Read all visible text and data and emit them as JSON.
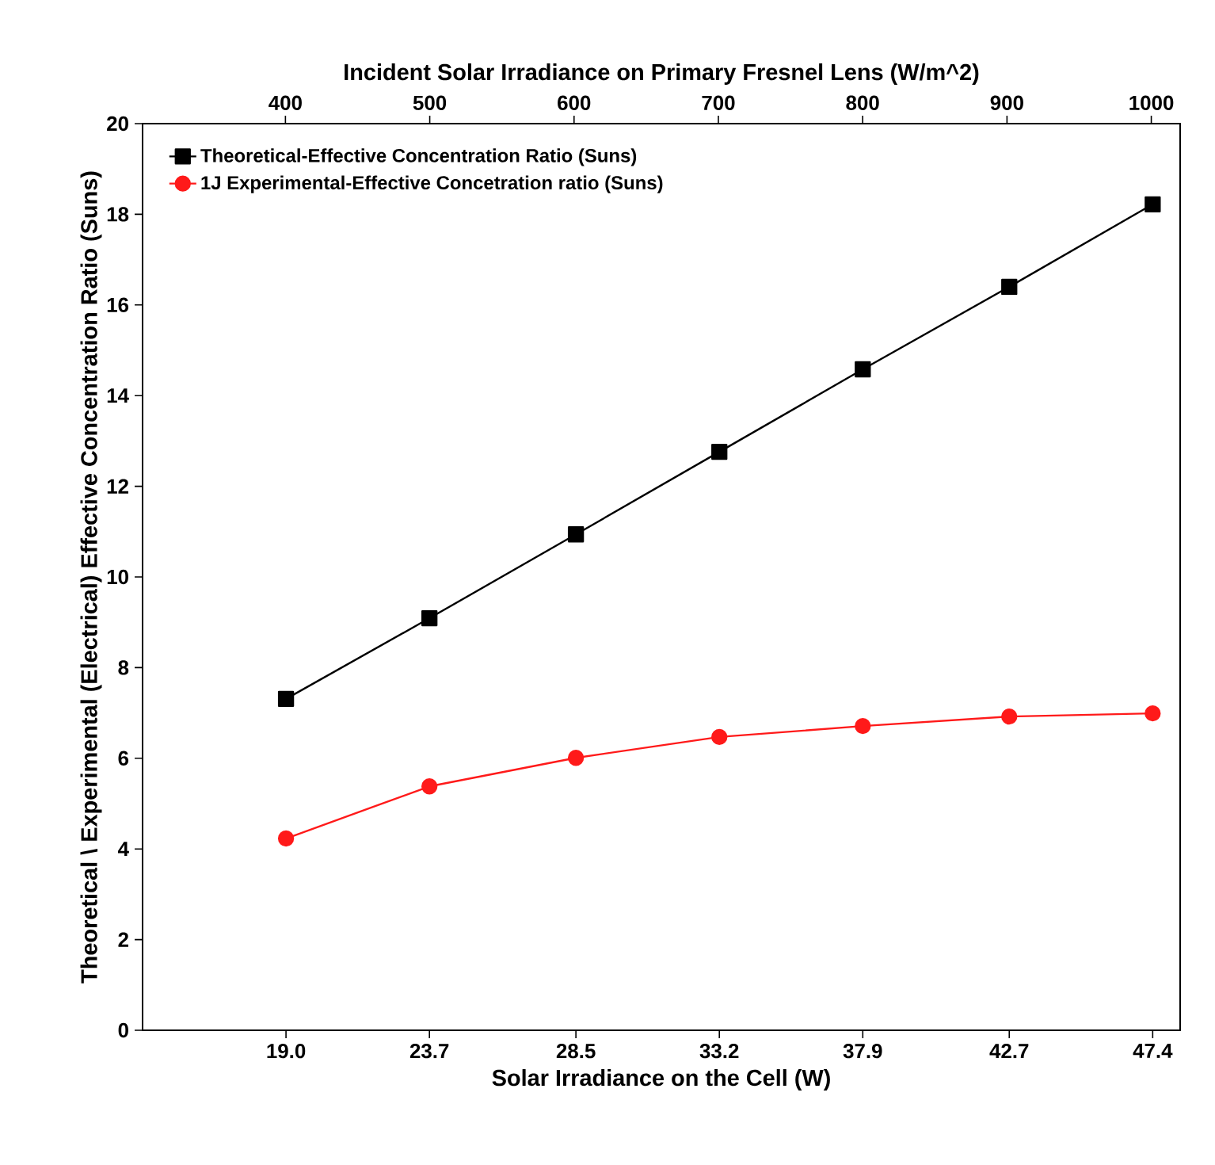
{
  "chart_data": {
    "type": "line",
    "xlabel": "Solar Irradiance on the Cell (W)",
    "x2label": "Incident Solar Irradiance on Primary Fresnel Lens (W/m^2)",
    "ylabel": "Theoretical \\ Experimental (Electrical) Effective Concentration Ratio (Suns)",
    "x": [
      19.0,
      23.7,
      28.5,
      33.2,
      37.9,
      42.7,
      47.4
    ],
    "xlim": [
      14.3,
      48.3
    ],
    "xticks": [
      {
        "value": 19,
        "label": "19.0"
      },
      23.7,
      28.5,
      33.2,
      37.9,
      42.7,
      47.4
    ],
    "x2lim": [
      301,
      1020
    ],
    "x2ticks": [
      400,
      500,
      600,
      700,
      800,
      900,
      1000
    ],
    "ylim": [
      0,
      20
    ],
    "yticks": [
      0,
      2,
      4,
      6,
      8,
      10,
      12,
      14,
      16,
      18,
      20
    ],
    "series": [
      {
        "name": "Theoretical-Effective Concentration Ratio (Suns)",
        "color": "#000000",
        "marker": "square",
        "values": [
          7.31,
          9.09,
          10.94,
          12.76,
          14.58,
          16.4,
          18.22
        ]
      },
      {
        "name": "1J Experimental-Effective Concetration ratio (Suns)",
        "color": "#ff1a1a",
        "marker": "circle",
        "values": [
          4.23,
          5.38,
          6.01,
          6.47,
          6.71,
          6.92,
          6.99
        ]
      }
    ],
    "legend": "top left",
    "grid": false,
    "line_style": "solid"
  }
}
